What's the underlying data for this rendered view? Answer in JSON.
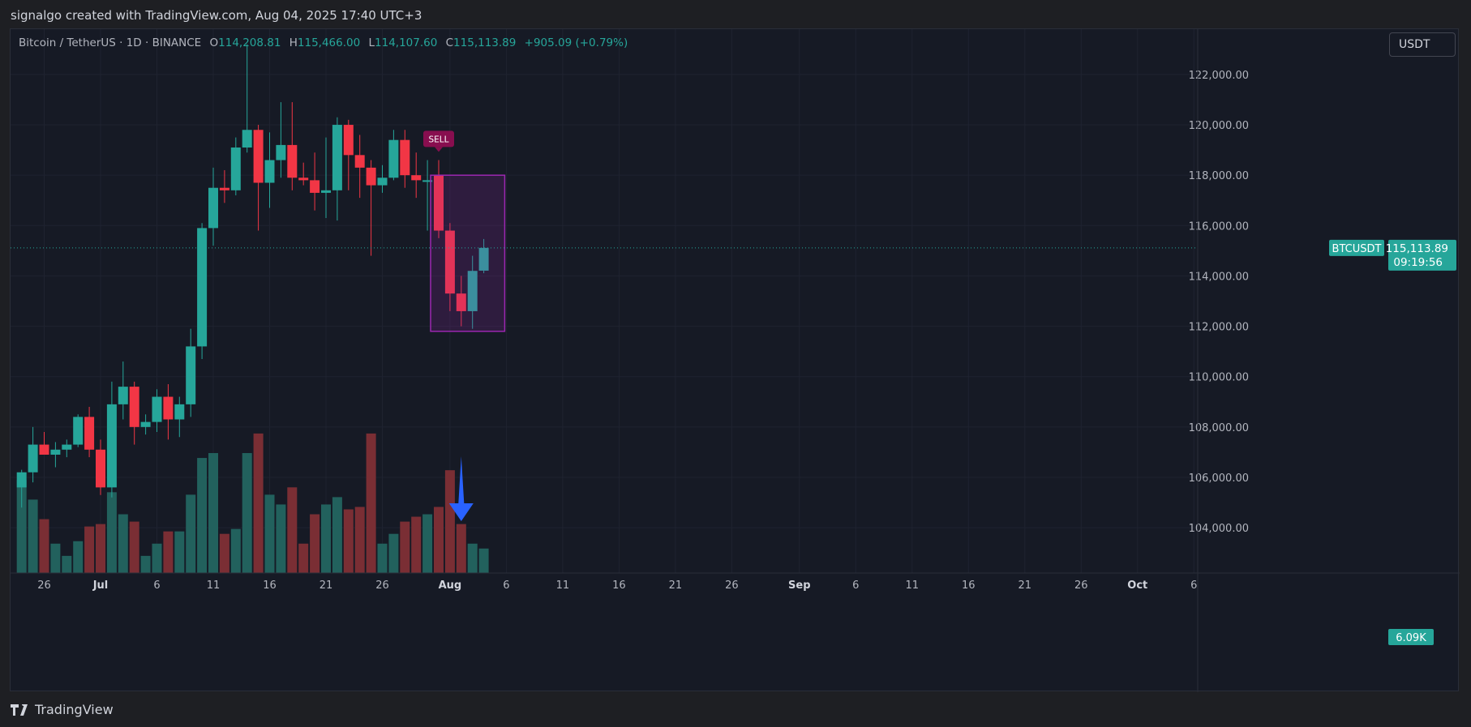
{
  "caption": "signalgo created with TradingView.com, Aug 04, 2025 17:40 UTC+3",
  "legend": {
    "symbol": "Bitcoin / TetherUS · 1D · BINANCE",
    "open_label": "O",
    "open": "114,208.81",
    "high_label": "H",
    "high": "115,466.00",
    "low_label": "L",
    "low": "114,107.60",
    "close_label": "C",
    "close": "115,113.89",
    "change": "+905.09 (+0.79%)"
  },
  "currency": "USDT",
  "footer": {
    "brand": "TradingView",
    "logo_icon": "tradingview-logo-icon"
  },
  "colors": {
    "up": "#26a69a",
    "down": "#f23645",
    "up_volume": "#22615d",
    "down_volume": "#7a2e34",
    "background": "#161a25",
    "signal_box": "#9c27b0",
    "sell_badge": "#880e4f",
    "arrow": "#2962ff"
  },
  "chart_data": {
    "type": "candlestick",
    "title": "Bitcoin / TetherUS · 1D · BINANCE",
    "ylim": [
      102200,
      123800
    ],
    "y_ticks": [
      104000,
      106000,
      108000,
      110000,
      112000,
      114000,
      116000,
      118000,
      120000,
      122000
    ],
    "y_tick_labels": [
      "104,000.00",
      "106,000.00",
      "108,000.00",
      "110,000.00",
      "112,000.00",
      "114,000.00",
      "116,000.00",
      "118,000.00",
      "120,000.00",
      "122,000.00"
    ],
    "x_tick_labels": [
      "26",
      "Jul",
      "6",
      "11",
      "16",
      "21",
      "26",
      "Aug",
      "6",
      "11",
      "16",
      "21",
      "26",
      "Sep",
      "6",
      "11",
      "16",
      "21",
      "26",
      "Oct",
      "6"
    ],
    "x_tick_dates": [
      "2025-06-26",
      "2025-07-01",
      "2025-07-06",
      "2025-07-11",
      "2025-07-16",
      "2025-07-21",
      "2025-07-26",
      "2025-08-01",
      "2025-08-06",
      "2025-08-11",
      "2025-08-16",
      "2025-08-21",
      "2025-08-26",
      "2025-09-01",
      "2025-09-06",
      "2025-09-11",
      "2025-09-16",
      "2025-09-21",
      "2025-09-26",
      "2025-10-01",
      "2025-10-06"
    ],
    "grid": true,
    "last_price": {
      "symbol": "BTCUSDT",
      "price": "115,113.89",
      "countdown": "09:19:56",
      "value": 115113.89
    },
    "volume_label": "6.09K",
    "signal": {
      "label": "SELL",
      "date": "2025-07-31",
      "price": 118800
    },
    "highlight_box": {
      "start": "2025-07-31",
      "end": "2025-08-06",
      "top": 118000,
      "bottom": 111800
    },
    "arrow": {
      "date": "2025-08-02",
      "direction": "down"
    },
    "candles": [
      {
        "date": "2025-06-24",
        "open": 105600,
        "high": 106300,
        "low": 104800,
        "close": 106200,
        "volume": 38
      },
      {
        "date": "2025-06-25",
        "open": 106200,
        "high": 108000,
        "low": 105800,
        "close": 107300,
        "volume": 30
      },
      {
        "date": "2025-06-26",
        "open": 107300,
        "high": 107800,
        "low": 106900,
        "close": 106900,
        "volume": 22
      },
      {
        "date": "2025-06-27",
        "open": 106900,
        "high": 107400,
        "low": 106400,
        "close": 107100,
        "volume": 12
      },
      {
        "date": "2025-06-28",
        "open": 107100,
        "high": 107500,
        "low": 106800,
        "close": 107300,
        "volume": 7
      },
      {
        "date": "2025-06-29",
        "open": 107300,
        "high": 108500,
        "low": 107200,
        "close": 108400,
        "volume": 13
      },
      {
        "date": "2025-06-30",
        "open": 108400,
        "high": 108800,
        "low": 106800,
        "close": 107100,
        "volume": 19
      },
      {
        "date": "2025-07-01",
        "open": 107100,
        "high": 107500,
        "low": 105300,
        "close": 105600,
        "volume": 20
      },
      {
        "date": "2025-07-02",
        "open": 105600,
        "high": 109800,
        "low": 105200,
        "close": 108900,
        "volume": 33
      },
      {
        "date": "2025-07-03",
        "open": 108900,
        "high": 110600,
        "low": 108300,
        "close": 109600,
        "volume": 24
      },
      {
        "date": "2025-07-04",
        "open": 109600,
        "high": 109800,
        "low": 107300,
        "close": 108000,
        "volume": 21
      },
      {
        "date": "2025-07-05",
        "open": 108000,
        "high": 108500,
        "low": 107700,
        "close": 108200,
        "volume": 7
      },
      {
        "date": "2025-07-06",
        "open": 108200,
        "high": 109500,
        "low": 107800,
        "close": 109200,
        "volume": 12
      },
      {
        "date": "2025-07-07",
        "open": 109200,
        "high": 109700,
        "low": 107500,
        "close": 108300,
        "volume": 17
      },
      {
        "date": "2025-07-08",
        "open": 108300,
        "high": 109200,
        "low": 107600,
        "close": 108900,
        "volume": 17
      },
      {
        "date": "2025-07-09",
        "open": 108900,
        "high": 111900,
        "low": 108400,
        "close": 111200,
        "volume": 32
      },
      {
        "date": "2025-07-10",
        "open": 111200,
        "high": 116100,
        "low": 110700,
        "close": 115900,
        "volume": 47
      },
      {
        "date": "2025-07-11",
        "open": 115900,
        "high": 118300,
        "low": 115200,
        "close": 117500,
        "volume": 49
      },
      {
        "date": "2025-07-12",
        "open": 117500,
        "high": 118200,
        "low": 116900,
        "close": 117400,
        "volume": 16
      },
      {
        "date": "2025-07-13",
        "open": 117400,
        "high": 119500,
        "low": 117200,
        "close": 119100,
        "volume": 18
      },
      {
        "date": "2025-07-14",
        "open": 119100,
        "high": 123200,
        "low": 118900,
        "close": 119800,
        "volume": 49
      },
      {
        "date": "2025-07-15",
        "open": 119800,
        "high": 120000,
        "low": 115800,
        "close": 117700,
        "volume": 57
      },
      {
        "date": "2025-07-16",
        "open": 117700,
        "high": 119700,
        "low": 116700,
        "close": 118600,
        "volume": 32
      },
      {
        "date": "2025-07-17",
        "open": 118600,
        "high": 120900,
        "low": 117900,
        "close": 119200,
        "volume": 28
      },
      {
        "date": "2025-07-18",
        "open": 119200,
        "high": 120900,
        "low": 117400,
        "close": 117900,
        "volume": 35
      },
      {
        "date": "2025-07-19",
        "open": 117900,
        "high": 118500,
        "low": 117600,
        "close": 117800,
        "volume": 12
      },
      {
        "date": "2025-07-20",
        "open": 117800,
        "high": 118900,
        "low": 116600,
        "close": 117300,
        "volume": 24
      },
      {
        "date": "2025-07-21",
        "open": 117300,
        "high": 119500,
        "low": 116300,
        "close": 117400,
        "volume": 28
      },
      {
        "date": "2025-07-22",
        "open": 117400,
        "high": 120300,
        "low": 116200,
        "close": 120000,
        "volume": 31
      },
      {
        "date": "2025-07-23",
        "open": 120000,
        "high": 120200,
        "low": 117400,
        "close": 118800,
        "volume": 26
      },
      {
        "date": "2025-07-24",
        "open": 118800,
        "high": 119600,
        "low": 117100,
        "close": 118300,
        "volume": 27
      },
      {
        "date": "2025-07-25",
        "open": 118300,
        "high": 118600,
        "low": 114800,
        "close": 117600,
        "volume": 57
      },
      {
        "date": "2025-07-26",
        "open": 117600,
        "high": 118400,
        "low": 117300,
        "close": 117900,
        "volume": 12
      },
      {
        "date": "2025-07-27",
        "open": 117900,
        "high": 119800,
        "low": 117800,
        "close": 119400,
        "volume": 16
      },
      {
        "date": "2025-07-28",
        "open": 119400,
        "high": 119800,
        "low": 117500,
        "close": 118000,
        "volume": 21
      },
      {
        "date": "2025-07-29",
        "open": 118000,
        "high": 118900,
        "low": 117100,
        "close": 117800,
        "volume": 23
      },
      {
        "date": "2025-07-30",
        "open": 117800,
        "high": 118600,
        "low": 115800,
        "close": 117800,
        "volume": 24
      },
      {
        "date": "2025-07-31",
        "open": 118000,
        "high": 118600,
        "low": 115500,
        "close": 115800,
        "volume": 27
      },
      {
        "date": "2025-08-01",
        "open": 115800,
        "high": 116100,
        "low": 112600,
        "close": 113300,
        "volume": 42
      },
      {
        "date": "2025-08-02",
        "open": 113300,
        "high": 114000,
        "low": 112000,
        "close": 112600,
        "volume": 20
      },
      {
        "date": "2025-08-03",
        "open": 112600,
        "high": 114800,
        "low": 111900,
        "close": 114200,
        "volume": 12
      },
      {
        "date": "2025-08-04",
        "open": 114208.81,
        "high": 115466.0,
        "low": 114107.6,
        "close": 115113.89,
        "volume": 10
      }
    ]
  }
}
